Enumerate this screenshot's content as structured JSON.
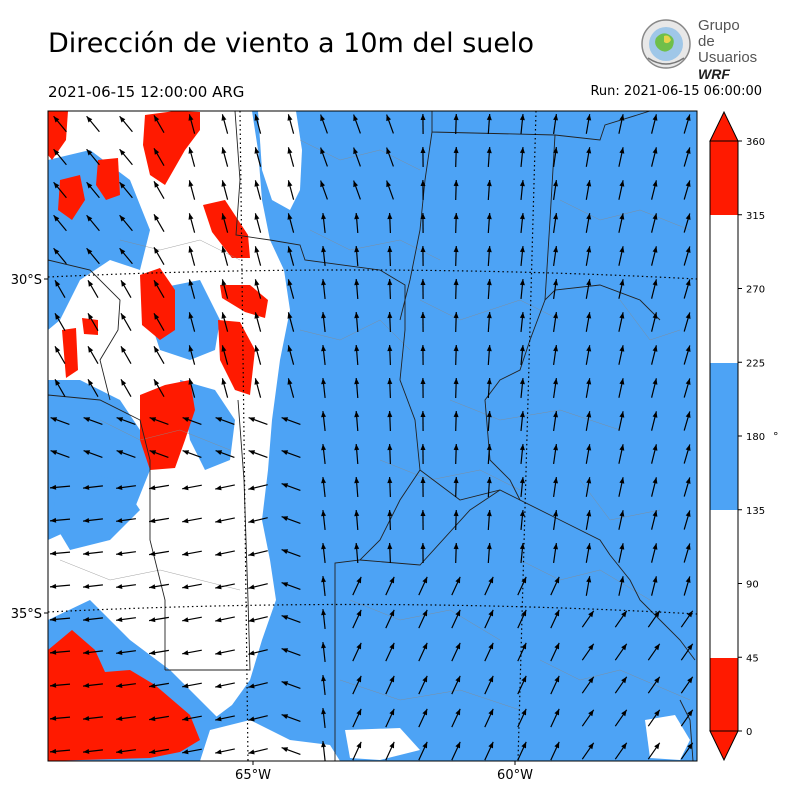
{
  "header": {
    "title": "Dirección de viento a 10m del suelo",
    "valid_time": "2021-06-15 12:00:00 ARG",
    "run_time": "Run: 2021-06-15 06:00:00"
  },
  "logo": {
    "line1": "Grupo de",
    "line2": "Usuarios",
    "line3": "WRF"
  },
  "map": {
    "lat_labels": [
      "30°S",
      "35°S"
    ],
    "lon_labels": [
      "65°W",
      "60°W"
    ],
    "wind_direction_color_classes": [
      {
        "from": 0,
        "to": 45,
        "color": "#ff1a00"
      },
      {
        "from": 45,
        "to": 135,
        "color": "#ffffff"
      },
      {
        "from": 135,
        "to": 225,
        "color": "#4da3f5"
      },
      {
        "from": 225,
        "to": 315,
        "color": "#ffffff"
      },
      {
        "from": 315,
        "to": 360,
        "color": "#ff1a00"
      }
    ]
  },
  "colorbar": {
    "ticks": [
      "0",
      "45",
      "90",
      "135",
      "180",
      "225",
      "270",
      "315",
      "360"
    ],
    "unit": "°"
  }
}
